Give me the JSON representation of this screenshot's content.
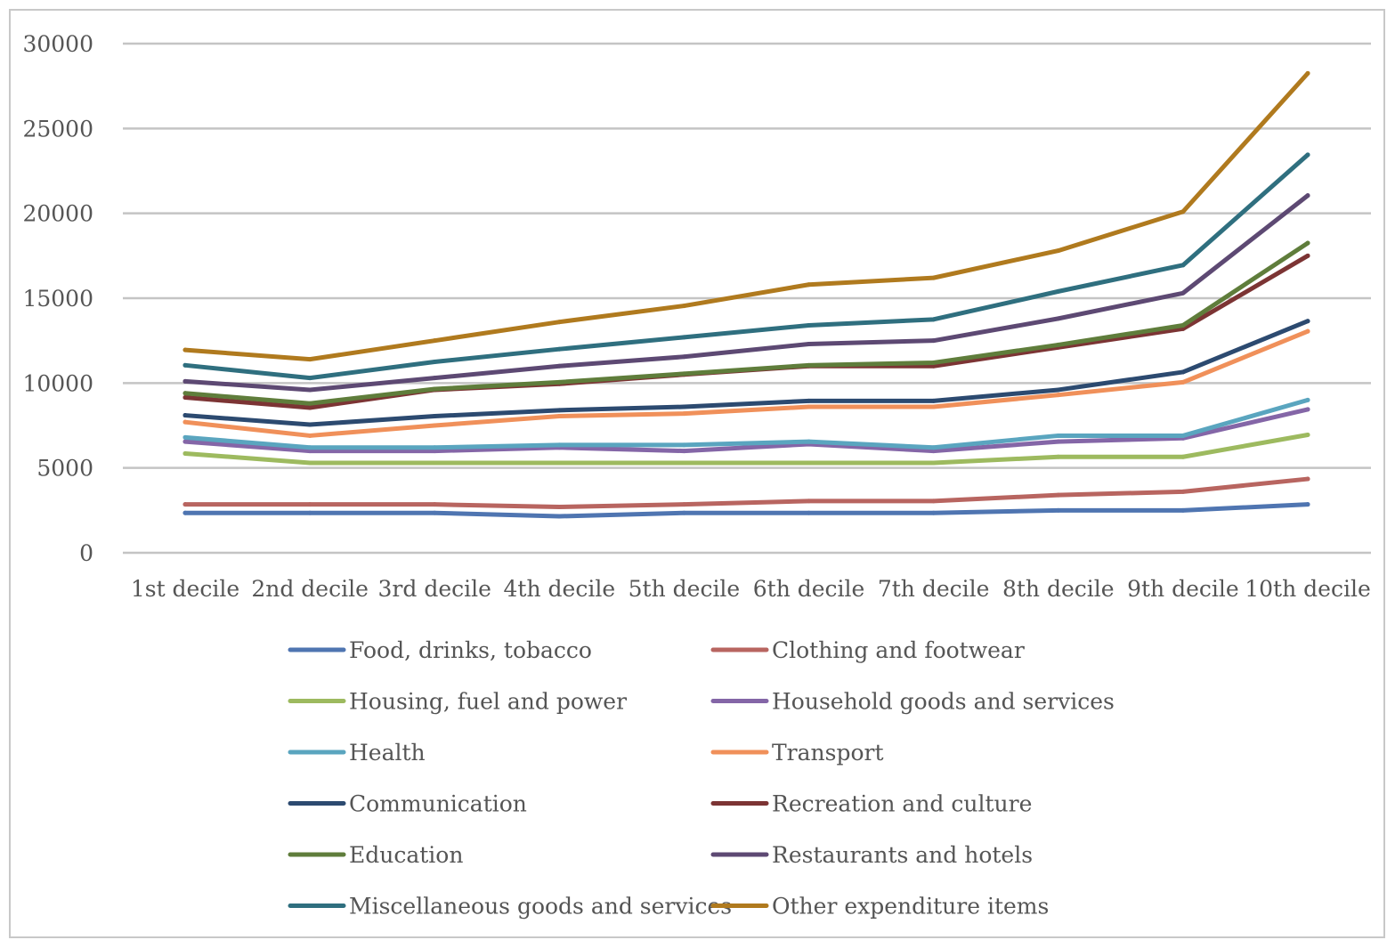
{
  "chart_data": {
    "type": "line",
    "title": "",
    "xlabel": "",
    "ylabel": "",
    "categories": [
      "1st decile",
      "2nd decile",
      "3rd decile",
      "4th decile",
      "5th decile",
      "6th decile",
      "7th decile",
      "8th decile",
      "9th decile",
      "10th decile"
    ],
    "ylim": [
      0,
      30000
    ],
    "yticks": [
      0,
      5000,
      10000,
      15000,
      20000,
      25000,
      30000
    ],
    "grid": "horizontal",
    "legend_placement": "bottom",
    "series": [
      {
        "name": "Food, drinks, tobacco",
        "color": "#4f75b1",
        "values": [
          2350,
          2350,
          2350,
          2150,
          2350,
          2350,
          2350,
          2500,
          2500,
          2850
        ]
      },
      {
        "name": "Clothing and footwear",
        "color": "#b86560",
        "values": [
          2850,
          2850,
          2850,
          2700,
          2850,
          3050,
          3050,
          3400,
          3600,
          4350
        ]
      },
      {
        "name": "Housing, fuel and power",
        "color": "#9dba5f",
        "values": [
          5850,
          5300,
          5300,
          5300,
          5300,
          5300,
          5300,
          5650,
          5650,
          6950
        ]
      },
      {
        "name": "Household goods and services",
        "color": "#8466a7",
        "values": [
          6550,
          6000,
          6000,
          6200,
          6000,
          6400,
          6000,
          6550,
          6750,
          8450
        ]
      },
      {
        "name": "Health",
        "color": "#5aa5bf",
        "values": [
          6800,
          6200,
          6200,
          6350,
          6350,
          6550,
          6200,
          6900,
          6900,
          9000
        ]
      },
      {
        "name": "Transport",
        "color": "#f0905a",
        "values": [
          7700,
          6900,
          7500,
          8050,
          8200,
          8600,
          8600,
          9300,
          10050,
          13050
        ]
      },
      {
        "name": "Communication",
        "color": "#2c4a70",
        "values": [
          8100,
          7550,
          8050,
          8400,
          8600,
          8950,
          8950,
          9600,
          10650,
          13650
        ]
      },
      {
        "name": "Recreation and culture",
        "color": "#7c3434",
        "values": [
          9150,
          8550,
          9600,
          9950,
          10500,
          11000,
          11000,
          12100,
          13200,
          17500
        ]
      },
      {
        "name": "Education",
        "color": "#5f7d3b",
        "values": [
          9400,
          8800,
          9650,
          10050,
          10550,
          11050,
          11200,
          12250,
          13400,
          18250
        ]
      },
      {
        "name": "Restaurants and hotels",
        "color": "#5d4973",
        "values": [
          10100,
          9600,
          10300,
          11000,
          11550,
          12300,
          12500,
          13800,
          15300,
          21050
        ]
      },
      {
        "name": "Miscellaneous goods and services",
        "color": "#2f6f7f",
        "values": [
          11050,
          10300,
          11250,
          12000,
          12700,
          13400,
          13750,
          15400,
          16950,
          23450
        ]
      },
      {
        "name": "Other expenditure items",
        "color": "#b07a1e",
        "values": [
          11950,
          11400,
          12500,
          13600,
          14550,
          15800,
          16200,
          17800,
          20100,
          28250
        ]
      }
    ]
  }
}
